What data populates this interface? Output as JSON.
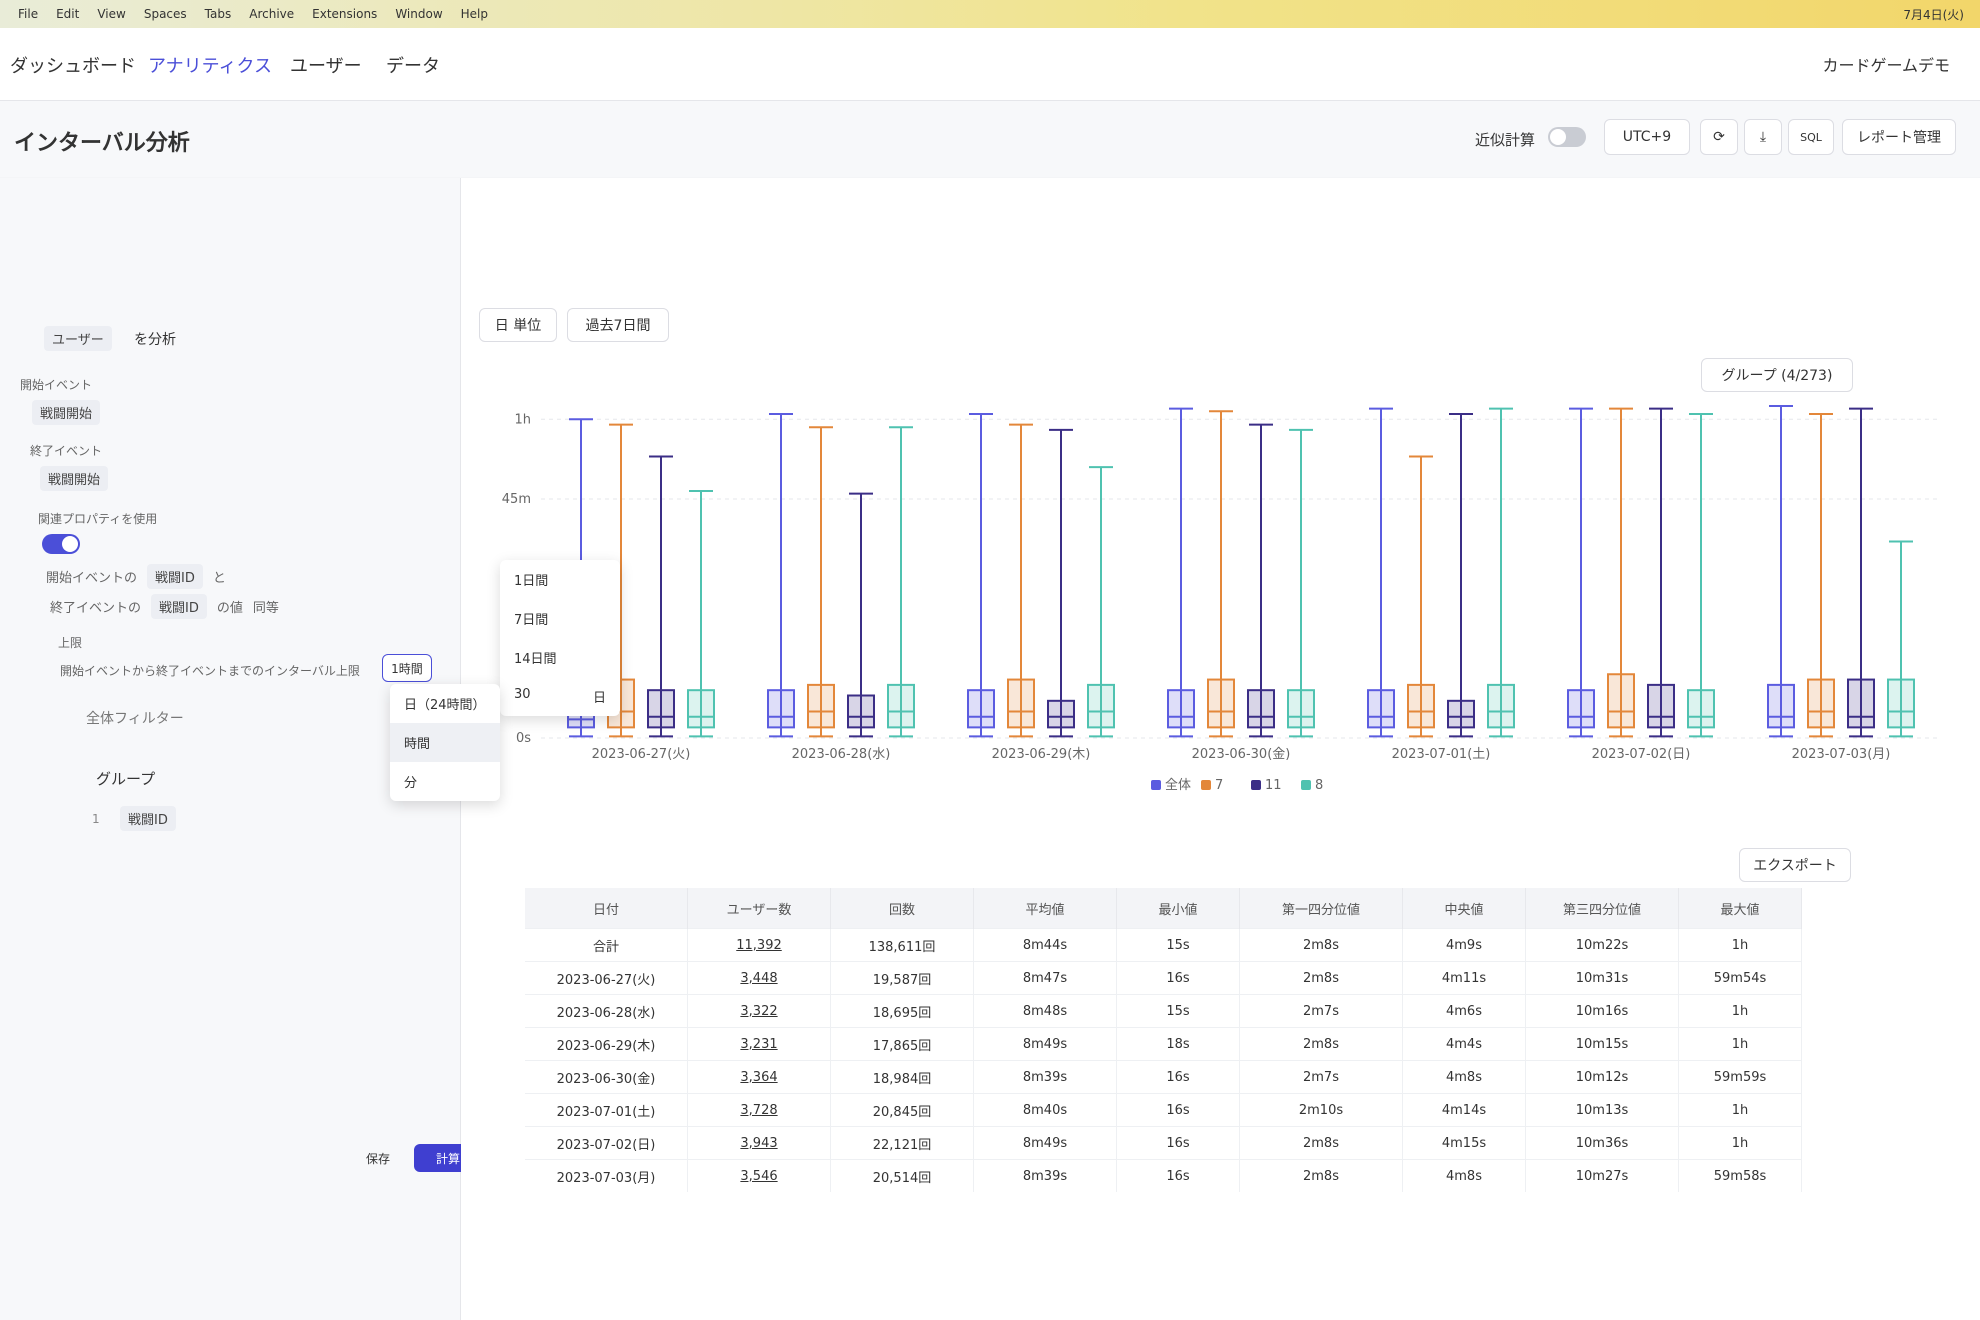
{
  "menu_bar": {
    "items": [
      "File",
      "Edit",
      "View",
      "Spaces",
      "Tabs",
      "Archive",
      "Extensions",
      "Window",
      "Help"
    ],
    "date": "7月4日(火)"
  },
  "nav": {
    "tabs": [
      "ダッシュボード",
      "アナリティクス",
      "ユーザー",
      "データ"
    ],
    "project": "カードゲームデモ"
  },
  "header": {
    "title": "インターバル分析",
    "approx_label": "近似計算",
    "timezone": "UTC+9",
    "sql": "SQL",
    "report": "レポート管理"
  },
  "panel": {
    "analyze_target": "ユーザー",
    "analyze_suffix": "を分析",
    "start_label": "開始イベント",
    "start_event": "戦闘開始",
    "end_label": "終了イベント",
    "end_event": "戦闘開始",
    "prop_label": "関連プロパティを使用",
    "row1": [
      "開始イベントの",
      "戦闘ID",
      "と"
    ],
    "row2": [
      "終了イベントの",
      "戦闘ID",
      "の値",
      "同等"
    ],
    "limit_label": "上限",
    "limit_text": "開始イベントから終了イベントまでのインターバル上限",
    "limit_value": "1時間",
    "filter": "全体フィルター",
    "group": "グループ",
    "group_index": "1",
    "group_item": "戦闘ID",
    "save": "保存",
    "calc": "計算"
  },
  "dropdown": {
    "units": [
      "日（24時間）",
      "時間",
      "分"
    ],
    "presets": [
      "1日間",
      "7日間",
      "14日間"
    ],
    "custom_value": "30",
    "custom_unit": "日"
  },
  "toolbar": {
    "granularity": "日 単位",
    "range": "過去7日間",
    "group_select": "グループ (4/273)"
  },
  "chart_data": {
    "type": "box",
    "categories": [
      "2023-06-27(火)",
      "2023-06-28(水)",
      "2023-06-29(木)",
      "2023-06-30(金)",
      "2023-07-01(土)",
      "2023-07-02(日)",
      "2023-07-03(月)"
    ],
    "ylim": [
      0,
      64
    ],
    "yticks": [
      {
        "value": 0,
        "label": "0s"
      },
      {
        "value": 45,
        "label": "45m"
      },
      {
        "value": 60,
        "label": "1h"
      }
    ],
    "grid": true,
    "series": [
      {
        "name": "全体",
        "color": "#5b5ce0",
        "min": [
          0.3,
          0.3,
          0.3,
          0.3,
          0.3,
          0.3,
          0.3
        ],
        "q1": [
          2,
          2,
          2,
          2,
          2,
          2,
          2
        ],
        "median": [
          3.5,
          4,
          4,
          4,
          4,
          4,
          4
        ],
        "q3": [
          8,
          9,
          9,
          9,
          9,
          9,
          10
        ],
        "max": [
          60,
          61,
          61,
          62,
          62,
          62,
          62.5
        ]
      },
      {
        "name": "7",
        "color": "#e3873a",
        "min": [
          0.3,
          0.3,
          0.3,
          0.3,
          0.3,
          0.3,
          0.3
        ],
        "q1": [
          2,
          2,
          2,
          2,
          2,
          2,
          2
        ],
        "median": [
          5,
          5,
          5,
          5,
          5,
          5,
          5
        ],
        "q3": [
          11,
          10,
          11,
          11,
          10,
          12,
          11
        ],
        "max": [
          59,
          58.5,
          59,
          61.5,
          53,
          62,
          61
        ]
      },
      {
        "name": "11",
        "color": "#3b2e86",
        "min": [
          0.3,
          0.3,
          0.3,
          0.3,
          0.3,
          0.3,
          0.3
        ],
        "q1": [
          2,
          2,
          2,
          2,
          2,
          2,
          2
        ],
        "median": [
          4,
          4,
          4,
          4,
          4,
          4,
          4
        ],
        "q3": [
          9,
          8,
          7,
          9,
          7,
          10,
          11
        ],
        "max": [
          53,
          46,
          58,
          59,
          61,
          62,
          62
        ]
      },
      {
        "name": "8",
        "color": "#4fc2b0",
        "min": [
          0.3,
          0.3,
          0.3,
          0.3,
          0.3,
          0.3,
          0.3
        ],
        "q1": [
          2,
          2,
          2,
          2,
          2,
          2,
          2
        ],
        "median": [
          4,
          5,
          5,
          4,
          5,
          4,
          5
        ],
        "q3": [
          9,
          10,
          10,
          9,
          10,
          9,
          11
        ],
        "max": [
          46.5,
          58.5,
          51,
          58,
          62,
          61,
          37
        ]
      }
    ]
  },
  "table": {
    "export": "エクスポート",
    "columns": [
      "日付",
      "ユーザー数",
      "回数",
      "平均値",
      "最小値",
      "第一四分位値",
      "中央値",
      "第三四分位値",
      "最大値"
    ],
    "rows": [
      [
        "合計",
        "11,392",
        "138,611回",
        "8m44s",
        "15s",
        "2m8s",
        "4m9s",
        "10m22s",
        "1h"
      ],
      [
        "2023-06-27(火)",
        "3,448",
        "19,587回",
        "8m47s",
        "16s",
        "2m8s",
        "4m11s",
        "10m31s",
        "59m54s"
      ],
      [
        "2023-06-28(水)",
        "3,322",
        "18,695回",
        "8m48s",
        "15s",
        "2m7s",
        "4m6s",
        "10m16s",
        "1h"
      ],
      [
        "2023-06-29(木)",
        "3,231",
        "17,865回",
        "8m49s",
        "18s",
        "2m8s",
        "4m4s",
        "10m15s",
        "1h"
      ],
      [
        "2023-06-30(金)",
        "3,364",
        "18,984回",
        "8m39s",
        "16s",
        "2m7s",
        "4m8s",
        "10m12s",
        "59m59s"
      ],
      [
        "2023-07-01(土)",
        "3,728",
        "20,845回",
        "8m40s",
        "16s",
        "2m10s",
        "4m14s",
        "10m13s",
        "1h"
      ],
      [
        "2023-07-02(日)",
        "3,943",
        "22,121回",
        "8m49s",
        "16s",
        "2m8s",
        "4m15s",
        "10m36s",
        "1h"
      ],
      [
        "2023-07-03(月)",
        "3,546",
        "20,514回",
        "8m39s",
        "16s",
        "2m8s",
        "4m8s",
        "10m27s",
        "59m58s"
      ]
    ]
  }
}
